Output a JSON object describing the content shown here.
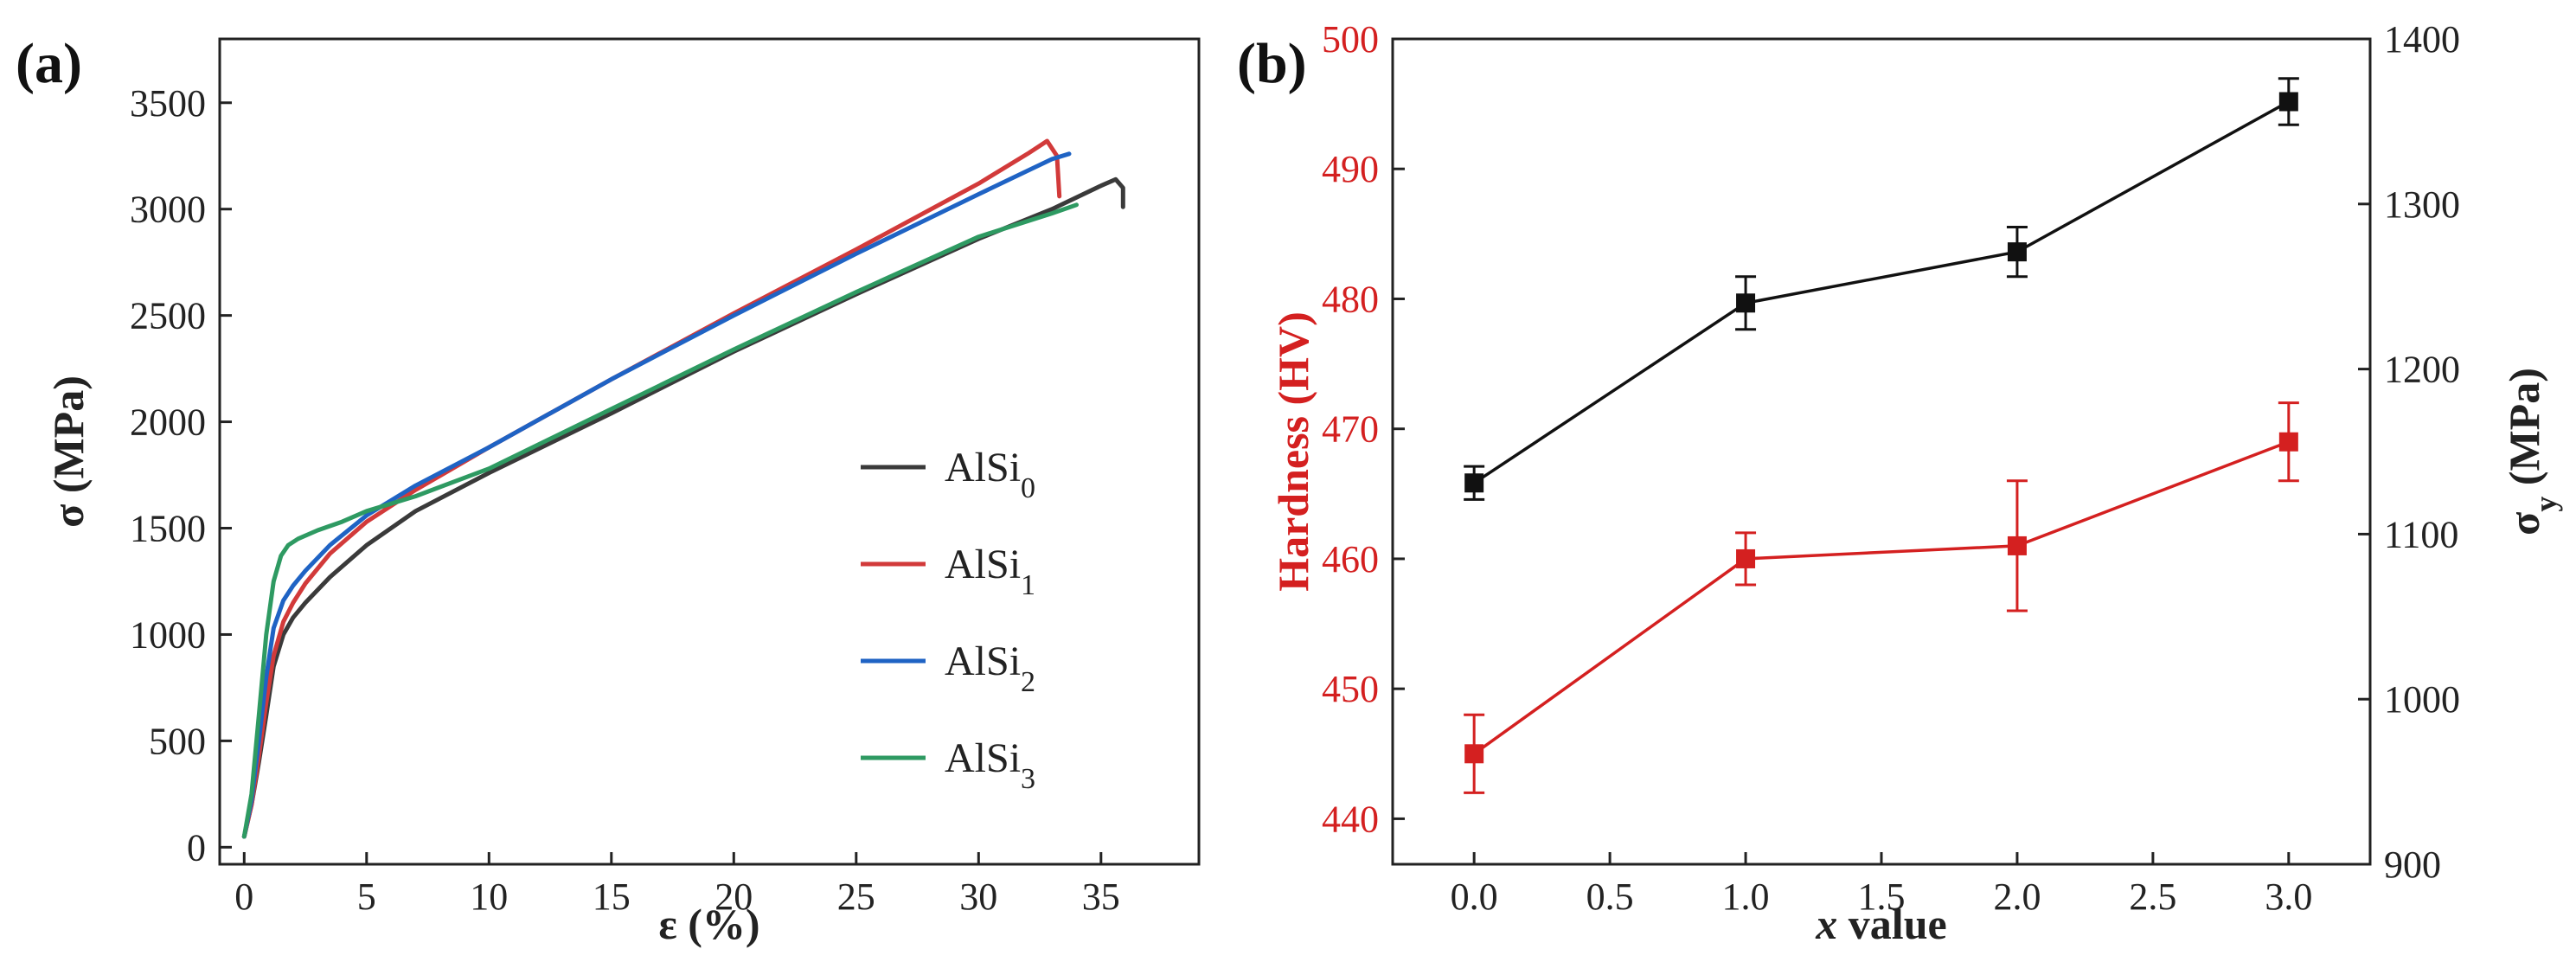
{
  "figure": {
    "panels": [
      "(a)",
      "(b)"
    ]
  },
  "chart_data": [
    {
      "type": "line",
      "panel_label": "(a)",
      "title": "",
      "xlabel": "ε (%)",
      "ylabel": "σ (MPa)",
      "xlim": [
        -1,
        39
      ],
      "ylim": [
        -80,
        3800
      ],
      "xticks": [
        0,
        5,
        10,
        15,
        20,
        25,
        30,
        35
      ],
      "yticks": [
        0,
        500,
        1000,
        1500,
        2000,
        2500,
        3000,
        3500
      ],
      "legend_position": "center-right",
      "series": [
        {
          "name": "AlSi₀",
          "base": "AlSi",
          "sub": "0",
          "color": "#3a3a3a",
          "x": [
            0,
            0.3,
            0.6,
            0.9,
            1.2,
            1.6,
            2.0,
            2.5,
            3.5,
            5,
            7,
            10,
            15,
            20,
            25,
            30,
            33,
            35,
            35.6,
            35.9,
            35.9
          ],
          "y": [
            50,
            200,
            400,
            620,
            850,
            1000,
            1080,
            1150,
            1270,
            1420,
            1580,
            1760,
            2040,
            2330,
            2600,
            2860,
            3000,
            3110,
            3140,
            3100,
            3010
          ]
        },
        {
          "name": "AlSi₁",
          "base": "AlSi",
          "sub": "1",
          "color": "#d23a3a",
          "x": [
            0,
            0.3,
            0.6,
            0.9,
            1.2,
            1.6,
            2.0,
            2.5,
            3.5,
            5,
            7,
            10,
            15,
            20,
            25,
            30,
            32,
            32.8,
            33.2,
            33.3
          ],
          "y": [
            50,
            200,
            430,
            680,
            900,
            1060,
            1150,
            1240,
            1380,
            1530,
            1680,
            1880,
            2200,
            2510,
            2810,
            3120,
            3260,
            3320,
            3250,
            3060
          ]
        },
        {
          "name": "AlSi₂",
          "base": "AlSi",
          "sub": "2",
          "color": "#1f63c4",
          "x": [
            0,
            0.3,
            0.6,
            0.9,
            1.2,
            1.6,
            2.0,
            2.5,
            3.5,
            5,
            7,
            10,
            15,
            20,
            25,
            30,
            32,
            33,
            33.7
          ],
          "y": [
            50,
            220,
            500,
            800,
            1030,
            1160,
            1230,
            1300,
            1420,
            1560,
            1700,
            1880,
            2200,
            2500,
            2790,
            3070,
            3180,
            3235,
            3260
          ]
        },
        {
          "name": "AlSi₃",
          "base": "AlSi",
          "sub": "3",
          "color": "#2e9a62",
          "x": [
            0,
            0.3,
            0.6,
            0.9,
            1.2,
            1.5,
            1.8,
            2.2,
            3,
            4,
            5,
            7,
            10,
            15,
            20,
            25,
            30,
            33,
            34
          ],
          "y": [
            50,
            250,
            620,
            1000,
            1250,
            1370,
            1420,
            1450,
            1490,
            1530,
            1580,
            1650,
            1780,
            2060,
            2340,
            2610,
            2870,
            2980,
            3020
          ]
        }
      ]
    },
    {
      "type": "line",
      "panel_label": "(b)",
      "title": "",
      "xlabel": "x value",
      "xlabel_italic": "x",
      "xlabel_rest": " value",
      "xlim": [
        -0.3,
        3.3
      ],
      "xticks": [
        "0.0",
        "0.5",
        "1.0",
        "1.5",
        "2.0",
        "2.5",
        "3.0"
      ],
      "y_left": {
        "label": "Hardness (HV)",
        "color": "#d42020",
        "lim": [
          436.5,
          500
        ],
        "ticks": [
          440,
          450,
          460,
          470,
          480,
          490,
          500
        ]
      },
      "y_right": {
        "label": "σy (MPa)",
        "base": "σ",
        "sub": "y",
        "rest": " (MPa)",
        "color": "#111111",
        "lim": [
          900,
          1400
        ],
        "ticks": [
          900,
          1000,
          1100,
          1200,
          1300,
          1400
        ]
      },
      "series": [
        {
          "name": "Hardness",
          "axis": "left",
          "color": "#d42020",
          "x": [
            0,
            1,
            2,
            3
          ],
          "y": [
            445,
            460,
            461,
            469
          ],
          "err": [
            3,
            2,
            5,
            3
          ]
        },
        {
          "name": "σy",
          "axis": "right",
          "color": "#111111",
          "x": [
            0,
            1,
            2,
            3
          ],
          "y": [
            1131,
            1240,
            1271,
            1362
          ],
          "err": [
            10,
            16,
            15,
            14
          ]
        }
      ]
    }
  ]
}
